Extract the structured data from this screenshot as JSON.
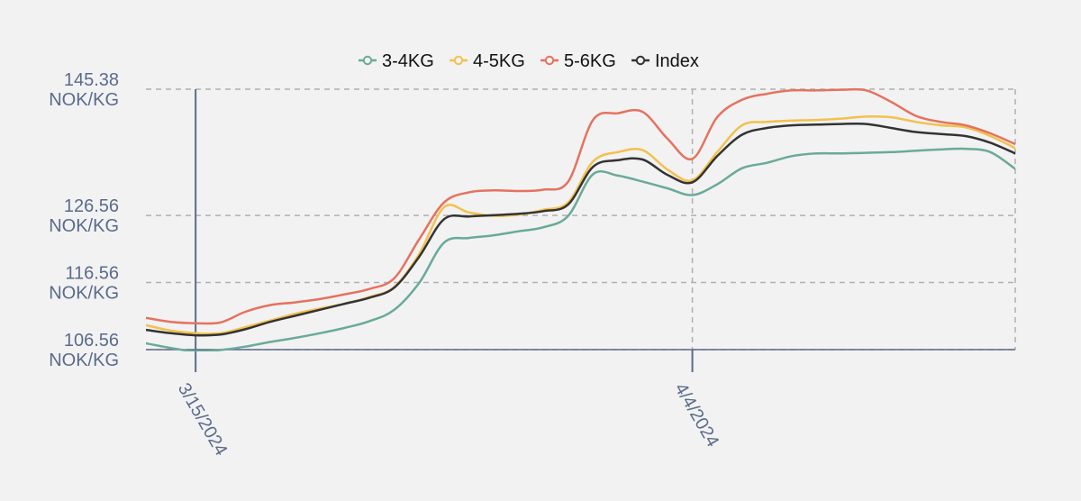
{
  "chart_data": {
    "type": "line",
    "title": "",
    "xlabel": "",
    "ylabel": "",
    "x": [
      "3/13/2024",
      "3/14/2024",
      "3/15/2024",
      "3/16/2024",
      "3/17/2024",
      "3/18/2024",
      "3/19/2024",
      "3/20/2024",
      "3/21/2024",
      "3/22/2024",
      "3/23/2024",
      "3/24/2024",
      "3/25/2024",
      "3/26/2024",
      "3/27/2024",
      "3/28/2024",
      "3/29/2024",
      "3/30/2024",
      "3/31/2024",
      "4/1/2024",
      "4/2/2024",
      "4/3/2024",
      "4/4/2024",
      "4/5/2024",
      "4/6/2024",
      "4/7/2024",
      "4/8/2024",
      "4/9/2024",
      "4/10/2024",
      "4/11/2024",
      "4/12/2024",
      "4/13/2024",
      "4/14/2024",
      "4/15/2024",
      "4/16/2024",
      "4/17/2024"
    ],
    "x_ticks": [
      {
        "label": "3/15/2024",
        "index": 2
      },
      {
        "label": "4/4/2024",
        "index": 22
      }
    ],
    "ylim": [
      106.56,
      145.38
    ],
    "y_ticks": [
      {
        "value": 145.38,
        "line1": "145.38",
        "line2": "NOK/KG"
      },
      {
        "value": 126.56,
        "line1": "126.56",
        "line2": "NOK/KG"
      },
      {
        "value": 116.56,
        "line1": "116.56",
        "line2": "NOK/KG"
      },
      {
        "value": 106.56,
        "line1": "106.56",
        "line2": "NOK/KG"
      }
    ],
    "grid": true,
    "legend_position": "top-center",
    "series": [
      {
        "name": "3-4KG",
        "color": "#6aaa9a",
        "values": [
          107.5,
          106.8,
          106.3,
          106.5,
          107.0,
          107.7,
          108.3,
          109.0,
          109.8,
          110.8,
          112.5,
          116.5,
          122.5,
          123.2,
          123.6,
          124.2,
          124.8,
          126.5,
          132.7,
          132.5,
          131.6,
          130.6,
          129.6,
          131.2,
          133.6,
          134.4,
          135.4,
          135.8,
          135.8,
          135.9,
          136.0,
          136.2,
          136.4,
          136.5,
          136.0,
          133.5
        ]
      },
      {
        "name": "4-5KG",
        "color": "#f2c14e",
        "values": [
          110.2,
          109.4,
          109.0,
          109.0,
          109.9,
          110.9,
          111.9,
          112.7,
          113.4,
          114.4,
          115.9,
          120.8,
          127.8,
          127.0,
          126.5,
          126.7,
          127.4,
          128.5,
          134.6,
          136.0,
          136.3,
          133.4,
          131.8,
          136.0,
          140.0,
          140.5,
          140.7,
          140.8,
          141.0,
          141.3,
          141.2,
          140.5,
          140.0,
          139.7,
          138.4,
          136.6
        ]
      },
      {
        "name": "5-6KG",
        "color": "#e5725f",
        "values": [
          111.3,
          110.7,
          110.5,
          110.6,
          112.2,
          113.2,
          113.6,
          114.1,
          114.8,
          115.6,
          117.2,
          123.0,
          128.5,
          130.0,
          130.3,
          130.2,
          130.4,
          131.6,
          140.8,
          141.8,
          142.0,
          138.0,
          135.0,
          141.2,
          143.8,
          144.7,
          145.2,
          145.2,
          145.3,
          145.2,
          143.5,
          141.4,
          140.5,
          140.0,
          138.8,
          137.2
        ]
      },
      {
        "name": "Index",
        "color": "#333333",
        "values": [
          109.5,
          109.0,
          108.7,
          108.8,
          109.6,
          110.7,
          111.6,
          112.5,
          113.4,
          114.3,
          115.8,
          120.4,
          126.0,
          126.4,
          126.6,
          126.8,
          127.2,
          128.2,
          133.8,
          134.8,
          134.9,
          132.6,
          131.5,
          135.4,
          138.6,
          139.6,
          140.0,
          140.1,
          140.2,
          140.2,
          139.6,
          139.0,
          138.7,
          138.4,
          137.4,
          135.8
        ]
      }
    ]
  }
}
